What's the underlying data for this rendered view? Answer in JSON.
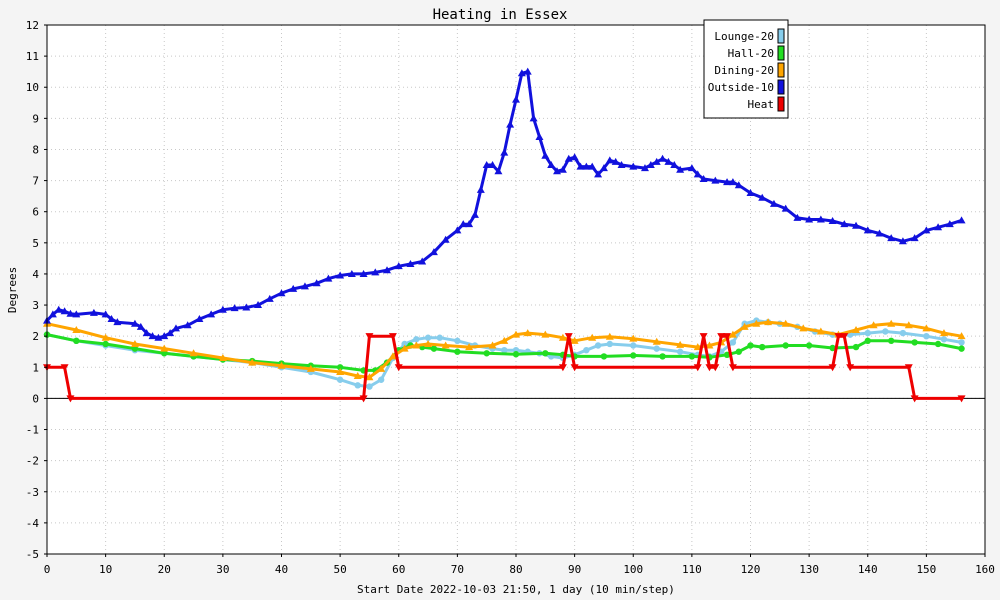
{
  "chart_data": {
    "type": "line",
    "title": "Heating in Essex",
    "xlabel": "Start Date 2022-10-03 21:50, 1 day (10 min/step)",
    "ylabel": "Degrees",
    "xlim": [
      0,
      160
    ],
    "ylim": [
      -5,
      12
    ],
    "xticks": [
      0,
      10,
      20,
      30,
      40,
      50,
      60,
      70,
      80,
      90,
      100,
      110,
      120,
      130,
      140,
      150,
      160
    ],
    "yticks": [
      -5,
      -4,
      -3,
      -2,
      -1,
      0,
      1,
      2,
      3,
      4,
      5,
      6,
      7,
      8,
      9,
      10,
      11,
      12
    ],
    "grid": true,
    "legend_position": "top-right",
    "series": [
      {
        "name": "Lounge-20",
        "color": "#87cdec",
        "marker": "circle",
        "points": [
          [
            0,
            2.05
          ],
          [
            5,
            1.85
          ],
          [
            10,
            1.7
          ],
          [
            15,
            1.55
          ],
          [
            20,
            1.45
          ],
          [
            25,
            1.35
          ],
          [
            30,
            1.25
          ],
          [
            35,
            1.15
          ],
          [
            40,
            1.0
          ],
          [
            45,
            0.85
          ],
          [
            50,
            0.6
          ],
          [
            53,
            0.42
          ],
          [
            55,
            0.38
          ],
          [
            57,
            0.6
          ],
          [
            59,
            1.3
          ],
          [
            61,
            1.75
          ],
          [
            63,
            1.9
          ],
          [
            65,
            1.95
          ],
          [
            67,
            1.95
          ],
          [
            70,
            1.85
          ],
          [
            73,
            1.7
          ],
          [
            76,
            1.6
          ],
          [
            78,
            1.55
          ],
          [
            80,
            1.55
          ],
          [
            82,
            1.5
          ],
          [
            84,
            1.45
          ],
          [
            86,
            1.35
          ],
          [
            88,
            1.3
          ],
          [
            90,
            1.4
          ],
          [
            92,
            1.55
          ],
          [
            94,
            1.7
          ],
          [
            96,
            1.75
          ],
          [
            100,
            1.7
          ],
          [
            104,
            1.6
          ],
          [
            108,
            1.5
          ],
          [
            111,
            1.4
          ],
          [
            113,
            1.35
          ],
          [
            115,
            1.5
          ],
          [
            117,
            1.8
          ],
          [
            119,
            2.4
          ],
          [
            121,
            2.5
          ],
          [
            123,
            2.45
          ],
          [
            125,
            2.4
          ],
          [
            128,
            2.3
          ],
          [
            131,
            2.15
          ],
          [
            134,
            2.05
          ],
          [
            137,
            2.05
          ],
          [
            140,
            2.1
          ],
          [
            143,
            2.15
          ],
          [
            146,
            2.1
          ],
          [
            150,
            2.0
          ],
          [
            153,
            1.9
          ],
          [
            156,
            1.8
          ]
        ]
      },
      {
        "name": "Hall-20",
        "color": "#22dd22",
        "marker": "circle",
        "points": [
          [
            0,
            2.05
          ],
          [
            5,
            1.85
          ],
          [
            10,
            1.75
          ],
          [
            15,
            1.6
          ],
          [
            20,
            1.45
          ],
          [
            25,
            1.35
          ],
          [
            30,
            1.25
          ],
          [
            35,
            1.2
          ],
          [
            40,
            1.12
          ],
          [
            45,
            1.05
          ],
          [
            50,
            1.0
          ],
          [
            54,
            0.9
          ],
          [
            56,
            0.9
          ],
          [
            58,
            1.15
          ],
          [
            60,
            1.55
          ],
          [
            62,
            1.7
          ],
          [
            64,
            1.65
          ],
          [
            66,
            1.6
          ],
          [
            70,
            1.5
          ],
          [
            75,
            1.45
          ],
          [
            80,
            1.42
          ],
          [
            85,
            1.45
          ],
          [
            88,
            1.4
          ],
          [
            90,
            1.35
          ],
          [
            95,
            1.35
          ],
          [
            100,
            1.38
          ],
          [
            105,
            1.35
          ],
          [
            110,
            1.35
          ],
          [
            113,
            1.32
          ],
          [
            116,
            1.4
          ],
          [
            118,
            1.5
          ],
          [
            120,
            1.7
          ],
          [
            122,
            1.65
          ],
          [
            126,
            1.7
          ],
          [
            130,
            1.7
          ],
          [
            134,
            1.62
          ],
          [
            138,
            1.65
          ],
          [
            140,
            1.85
          ],
          [
            144,
            1.85
          ],
          [
            148,
            1.8
          ],
          [
            152,
            1.75
          ],
          [
            156,
            1.6
          ]
        ]
      },
      {
        "name": "Dining-20",
        "color": "#ffa500",
        "marker": "triangle",
        "points": [
          [
            0,
            2.4
          ],
          [
            5,
            2.2
          ],
          [
            10,
            1.95
          ],
          [
            15,
            1.75
          ],
          [
            20,
            1.6
          ],
          [
            25,
            1.45
          ],
          [
            30,
            1.3
          ],
          [
            35,
            1.15
          ],
          [
            40,
            1.05
          ],
          [
            45,
            0.95
          ],
          [
            50,
            0.85
          ],
          [
            53,
            0.72
          ],
          [
            55,
            0.68
          ],
          [
            57,
            0.95
          ],
          [
            59,
            1.35
          ],
          [
            61,
            1.6
          ],
          [
            63,
            1.7
          ],
          [
            65,
            1.75
          ],
          [
            68,
            1.7
          ],
          [
            72,
            1.65
          ],
          [
            76,
            1.7
          ],
          [
            78,
            1.85
          ],
          [
            80,
            2.05
          ],
          [
            82,
            2.1
          ],
          [
            85,
            2.05
          ],
          [
            88,
            1.95
          ],
          [
            90,
            1.85
          ],
          [
            93,
            1.95
          ],
          [
            96,
            1.98
          ],
          [
            100,
            1.92
          ],
          [
            104,
            1.82
          ],
          [
            108,
            1.72
          ],
          [
            111,
            1.65
          ],
          [
            113,
            1.7
          ],
          [
            115,
            1.8
          ],
          [
            117,
            2.05
          ],
          [
            119,
            2.3
          ],
          [
            121,
            2.4
          ],
          [
            123,
            2.45
          ],
          [
            126,
            2.4
          ],
          [
            129,
            2.25
          ],
          [
            132,
            2.15
          ],
          [
            135,
            2.05
          ],
          [
            138,
            2.2
          ],
          [
            141,
            2.35
          ],
          [
            144,
            2.4
          ],
          [
            147,
            2.35
          ],
          [
            150,
            2.25
          ],
          [
            153,
            2.1
          ],
          [
            156,
            2.0
          ]
        ]
      },
      {
        "name": "Outside-10",
        "color": "#1111dd",
        "marker": "triangle",
        "points": [
          [
            0,
            2.5
          ],
          [
            1,
            2.7
          ],
          [
            2,
            2.85
          ],
          [
            3,
            2.8
          ],
          [
            4,
            2.72
          ],
          [
            5,
            2.7
          ],
          [
            8,
            2.75
          ],
          [
            10,
            2.7
          ],
          [
            11,
            2.55
          ],
          [
            12,
            2.45
          ],
          [
            15,
            2.4
          ],
          [
            16,
            2.3
          ],
          [
            17,
            2.1
          ],
          [
            18,
            2.0
          ],
          [
            19,
            1.95
          ],
          [
            20,
            2.0
          ],
          [
            21,
            2.1
          ],
          [
            22,
            2.25
          ],
          [
            24,
            2.35
          ],
          [
            26,
            2.55
          ],
          [
            28,
            2.7
          ],
          [
            30,
            2.85
          ],
          [
            32,
            2.9
          ],
          [
            34,
            2.92
          ],
          [
            36,
            3.0
          ],
          [
            38,
            3.2
          ],
          [
            40,
            3.38
          ],
          [
            42,
            3.52
          ],
          [
            44,
            3.6
          ],
          [
            46,
            3.7
          ],
          [
            48,
            3.85
          ],
          [
            50,
            3.95
          ],
          [
            52,
            4.0
          ],
          [
            54,
            4.0
          ],
          [
            56,
            4.05
          ],
          [
            58,
            4.12
          ],
          [
            60,
            4.25
          ],
          [
            62,
            4.32
          ],
          [
            64,
            4.4
          ],
          [
            66,
            4.7
          ],
          [
            68,
            5.1
          ],
          [
            70,
            5.4
          ],
          [
            71,
            5.6
          ],
          [
            72,
            5.6
          ],
          [
            73,
            5.9
          ],
          [
            74,
            6.7
          ],
          [
            75,
            7.5
          ],
          [
            76,
            7.5
          ],
          [
            77,
            7.3
          ],
          [
            78,
            7.9
          ],
          [
            79,
            8.8
          ],
          [
            80,
            9.6
          ],
          [
            81,
            10.45
          ],
          [
            82,
            10.5
          ],
          [
            83,
            9.0
          ],
          [
            84,
            8.4
          ],
          [
            85,
            7.8
          ],
          [
            86,
            7.5
          ],
          [
            87,
            7.3
          ],
          [
            88,
            7.35
          ],
          [
            89,
            7.7
          ],
          [
            90,
            7.75
          ],
          [
            91,
            7.45
          ],
          [
            92,
            7.45
          ],
          [
            93,
            7.45
          ],
          [
            94,
            7.2
          ],
          [
            95,
            7.4
          ],
          [
            96,
            7.65
          ],
          [
            97,
            7.6
          ],
          [
            98,
            7.5
          ],
          [
            100,
            7.45
          ],
          [
            102,
            7.4
          ],
          [
            103,
            7.5
          ],
          [
            104,
            7.6
          ],
          [
            105,
            7.7
          ],
          [
            106,
            7.6
          ],
          [
            107,
            7.5
          ],
          [
            108,
            7.35
          ],
          [
            110,
            7.4
          ],
          [
            111,
            7.2
          ],
          [
            112,
            7.05
          ],
          [
            114,
            7.0
          ],
          [
            116,
            6.95
          ],
          [
            117,
            6.95
          ],
          [
            118,
            6.85
          ],
          [
            120,
            6.6
          ],
          [
            122,
            6.45
          ],
          [
            124,
            6.25
          ],
          [
            126,
            6.1
          ],
          [
            128,
            5.8
          ],
          [
            130,
            5.75
          ],
          [
            132,
            5.75
          ],
          [
            134,
            5.7
          ],
          [
            136,
            5.6
          ],
          [
            138,
            5.55
          ],
          [
            140,
            5.4
          ],
          [
            142,
            5.3
          ],
          [
            144,
            5.15
          ],
          [
            146,
            5.05
          ],
          [
            148,
            5.15
          ],
          [
            150,
            5.4
          ],
          [
            152,
            5.5
          ],
          [
            154,
            5.6
          ],
          [
            156,
            5.72
          ]
        ]
      },
      {
        "name": "Heat",
        "color": "#ee0000",
        "marker": "triangle-down",
        "points": [
          [
            0,
            1
          ],
          [
            3,
            1
          ],
          [
            4,
            0
          ],
          [
            54,
            0
          ],
          [
            55,
            2
          ],
          [
            59,
            2
          ],
          [
            60,
            1
          ],
          [
            88,
            1
          ],
          [
            89,
            2
          ],
          [
            90,
            1
          ],
          [
            111,
            1
          ],
          [
            112,
            2
          ],
          [
            113,
            1
          ],
          [
            114,
            1
          ],
          [
            115,
            2
          ],
          [
            116,
            2
          ],
          [
            117,
            1
          ],
          [
            134,
            1
          ],
          [
            135,
            2
          ],
          [
            136,
            2
          ],
          [
            137,
            1
          ],
          [
            147,
            1
          ],
          [
            148,
            0
          ],
          [
            156,
            0
          ]
        ]
      }
    ]
  }
}
